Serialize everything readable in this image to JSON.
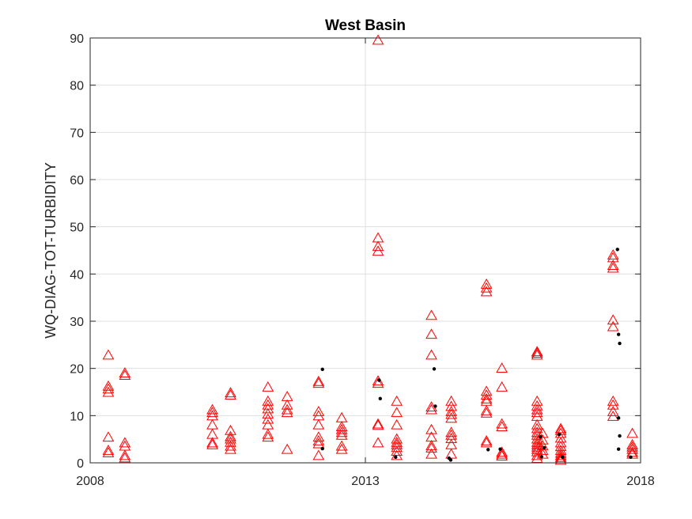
{
  "chart_data": {
    "type": "scatter",
    "title": "West Basin",
    "xlabel": "",
    "ylabel": "WQ-DIAG-TOT-TURBIDITY",
    "xlim": [
      2008,
      2018
    ],
    "ylim": [
      0,
      90
    ],
    "x_ticks": [
      2008,
      2013,
      2018
    ],
    "x_tick_labels": [
      "2008",
      "2013",
      "2018"
    ],
    "y_ticks": [
      0,
      10,
      20,
      30,
      40,
      50,
      60,
      70,
      80,
      90
    ],
    "y_tick_labels": [
      "0",
      "10",
      "20",
      "30",
      "40",
      "50",
      "60",
      "70",
      "80",
      "90"
    ],
    "grid": true,
    "legend": "none",
    "series": [
      {
        "marker": "triangle-open",
        "color": "#ff0000",
        "points": [
          [
            2008.33,
            22.8
          ],
          [
            2008.33,
            16.2
          ],
          [
            2008.33,
            15.6
          ],
          [
            2008.33,
            14.9
          ],
          [
            2008.33,
            5.4
          ],
          [
            2008.33,
            2.6
          ],
          [
            2008.33,
            2.1
          ],
          [
            2008.63,
            19.0
          ],
          [
            2008.63,
            18.5
          ],
          [
            2008.63,
            4.2
          ],
          [
            2008.63,
            3.5
          ],
          [
            2008.63,
            1.5
          ],
          [
            2008.63,
            1.0
          ],
          [
            2010.22,
            11.2
          ],
          [
            2010.22,
            10.6
          ],
          [
            2010.22,
            9.9
          ],
          [
            2010.22,
            8.0
          ],
          [
            2010.22,
            6.0
          ],
          [
            2010.22,
            4.2
          ],
          [
            2010.22,
            3.8
          ],
          [
            2010.55,
            14.8
          ],
          [
            2010.55,
            14.3
          ],
          [
            2010.55,
            6.8
          ],
          [
            2010.55,
            5.5
          ],
          [
            2010.55,
            5.0
          ],
          [
            2010.55,
            4.3
          ],
          [
            2010.55,
            3.5
          ],
          [
            2010.55,
            2.8
          ],
          [
            2011.23,
            16.0
          ],
          [
            2011.23,
            13.0
          ],
          [
            2011.23,
            12.2
          ],
          [
            2011.23,
            11.4
          ],
          [
            2011.23,
            10.3
          ],
          [
            2011.23,
            9.2
          ],
          [
            2011.23,
            8.0
          ],
          [
            2011.23,
            6.0
          ],
          [
            2011.23,
            5.4
          ],
          [
            2011.58,
            14.0
          ],
          [
            2011.58,
            12.2
          ],
          [
            2011.58,
            11.2
          ],
          [
            2011.58,
            10.6
          ],
          [
            2011.58,
            2.8
          ],
          [
            2012.15,
            17.2
          ],
          [
            2012.15,
            16.8
          ],
          [
            2012.15,
            10.8
          ],
          [
            2012.15,
            9.9
          ],
          [
            2012.15,
            8.0
          ],
          [
            2012.15,
            5.4
          ],
          [
            2012.15,
            4.6
          ],
          [
            2012.15,
            4.0
          ],
          [
            2012.15,
            1.5
          ],
          [
            2012.57,
            9.5
          ],
          [
            2012.57,
            7.6
          ],
          [
            2012.57,
            7.0
          ],
          [
            2012.57,
            6.4
          ],
          [
            2012.57,
            5.8
          ],
          [
            2012.57,
            3.5
          ],
          [
            2012.57,
            2.8
          ],
          [
            2013.23,
            89.5
          ],
          [
            2013.23,
            47.6
          ],
          [
            2013.23,
            45.8
          ],
          [
            2013.23,
            44.8
          ],
          [
            2013.23,
            17.3
          ],
          [
            2013.23,
            16.8
          ],
          [
            2013.23,
            8.2
          ],
          [
            2013.23,
            7.9
          ],
          [
            2013.23,
            4.2
          ],
          [
            2013.57,
            13.0
          ],
          [
            2013.57,
            10.6
          ],
          [
            2013.57,
            8.0
          ],
          [
            2013.57,
            5.0
          ],
          [
            2013.57,
            4.3
          ],
          [
            2013.57,
            3.8
          ],
          [
            2013.57,
            3.2
          ],
          [
            2013.57,
            2.4
          ],
          [
            2013.57,
            1.5
          ],
          [
            2014.2,
            31.2
          ],
          [
            2014.2,
            27.2
          ],
          [
            2014.2,
            22.8
          ],
          [
            2014.2,
            11.8
          ],
          [
            2014.2,
            11.2
          ],
          [
            2014.2,
            7.0
          ],
          [
            2014.2,
            5.4
          ],
          [
            2014.2,
            3.6
          ],
          [
            2014.2,
            3.1
          ],
          [
            2014.2,
            1.8
          ],
          [
            2014.56,
            13.0
          ],
          [
            2014.56,
            11.9
          ],
          [
            2014.56,
            10.8
          ],
          [
            2014.56,
            10.2
          ],
          [
            2014.56,
            9.4
          ],
          [
            2014.56,
            6.4
          ],
          [
            2014.56,
            5.8
          ],
          [
            2014.56,
            5.1
          ],
          [
            2014.56,
            3.8
          ],
          [
            2014.56,
            1.8
          ],
          [
            2015.2,
            37.8
          ],
          [
            2015.2,
            37.0
          ],
          [
            2015.2,
            36.2
          ],
          [
            2015.2,
            15.1
          ],
          [
            2015.2,
            14.3
          ],
          [
            2015.2,
            13.5
          ],
          [
            2015.2,
            13.0
          ],
          [
            2015.2,
            11.0
          ],
          [
            2015.2,
            10.5
          ],
          [
            2015.2,
            4.6
          ],
          [
            2015.2,
            4.2
          ],
          [
            2015.48,
            20.0
          ],
          [
            2015.48,
            16.0
          ],
          [
            2015.48,
            8.2
          ],
          [
            2015.48,
            7.6
          ],
          [
            2015.48,
            2.2
          ],
          [
            2015.48,
            1.8
          ],
          [
            2015.48,
            1.4
          ],
          [
            2016.12,
            23.5
          ],
          [
            2016.12,
            23.2
          ],
          [
            2016.12,
            22.8
          ],
          [
            2016.12,
            13.0
          ],
          [
            2016.12,
            12.0
          ],
          [
            2016.12,
            11.2
          ],
          [
            2016.12,
            10.6
          ],
          [
            2016.12,
            9.8
          ],
          [
            2016.12,
            8.0
          ],
          [
            2016.12,
            7.2
          ],
          [
            2016.12,
            6.4
          ],
          [
            2016.12,
            5.8
          ],
          [
            2016.12,
            5.0
          ],
          [
            2016.12,
            4.3
          ],
          [
            2016.12,
            3.8
          ],
          [
            2016.12,
            3.3
          ],
          [
            2016.12,
            2.8
          ],
          [
            2016.12,
            2.3
          ],
          [
            2016.12,
            1.5
          ],
          [
            2016.12,
            0.9
          ],
          [
            2016.22,
            6.2
          ],
          [
            2016.22,
            4.8
          ],
          [
            2016.22,
            3.6
          ],
          [
            2016.22,
            2.6
          ],
          [
            2016.22,
            1.8
          ],
          [
            2016.55,
            7.2
          ],
          [
            2016.55,
            6.8
          ],
          [
            2016.55,
            6.2
          ],
          [
            2016.55,
            5.2
          ],
          [
            2016.55,
            4.2
          ],
          [
            2016.55,
            3.4
          ],
          [
            2016.55,
            2.6
          ],
          [
            2016.55,
            2.0
          ],
          [
            2016.55,
            1.5
          ],
          [
            2016.55,
            1.1
          ],
          [
            2016.55,
            0.8
          ],
          [
            2016.55,
            0.5
          ],
          [
            2017.5,
            44.0
          ],
          [
            2017.5,
            43.4
          ],
          [
            2017.5,
            41.8
          ],
          [
            2017.5,
            41.2
          ],
          [
            2017.5,
            30.2
          ],
          [
            2017.5,
            28.8
          ],
          [
            2017.5,
            13.0
          ],
          [
            2017.5,
            12.2
          ],
          [
            2017.5,
            10.8
          ],
          [
            2017.5,
            9.8
          ],
          [
            2017.85,
            6.2
          ],
          [
            2017.85,
            3.8
          ],
          [
            2017.85,
            3.3
          ],
          [
            2017.85,
            2.8
          ],
          [
            2017.85,
            2.2
          ],
          [
            2017.85,
            1.8
          ]
        ]
      },
      {
        "marker": "dot",
        "color": "#000000",
        "points": [
          [
            2012.22,
            19.8
          ],
          [
            2012.22,
            3.0
          ],
          [
            2013.25,
            17.5
          ],
          [
            2013.27,
            13.6
          ],
          [
            2013.55,
            1.2
          ],
          [
            2014.25,
            19.9
          ],
          [
            2014.27,
            12.0
          ],
          [
            2014.52,
            1.0
          ],
          [
            2014.55,
            0.6
          ],
          [
            2015.23,
            2.8
          ],
          [
            2015.45,
            2.9
          ],
          [
            2016.18,
            5.5
          ],
          [
            2016.2,
            1.3
          ],
          [
            2016.25,
            3.2
          ],
          [
            2016.52,
            6.0
          ],
          [
            2016.58,
            1.2
          ],
          [
            2017.58,
            45.2
          ],
          [
            2017.6,
            27.2
          ],
          [
            2017.62,
            25.3
          ],
          [
            2017.6,
            9.5
          ],
          [
            2017.62,
            5.7
          ],
          [
            2017.6,
            2.9
          ],
          [
            2017.82,
            1.2
          ]
        ]
      }
    ]
  }
}
